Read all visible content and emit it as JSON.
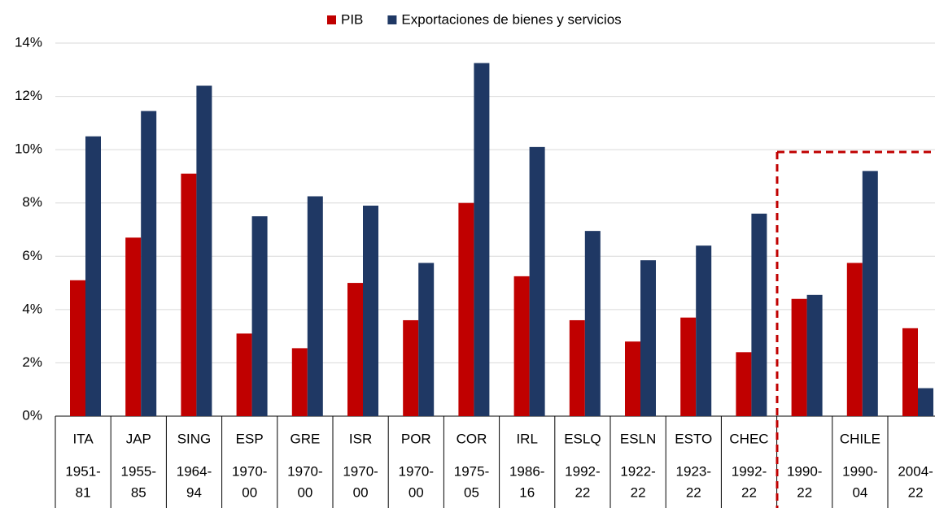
{
  "chart_data": {
    "type": "bar",
    "countries": [
      "ITA",
      "JAP",
      "SING",
      "ESP",
      "GRE",
      "ISR",
      "POR",
      "COR",
      "IRL",
      "ESLQ",
      "ESLN",
      "ESTO",
      "CHEC",
      null,
      "CHILE",
      null
    ],
    "periods": [
      [
        "1951-",
        "81"
      ],
      [
        "1955-",
        "85"
      ],
      [
        "1964-",
        "94"
      ],
      [
        "1970-",
        "00"
      ],
      [
        "1970-",
        "00"
      ],
      [
        "1970-",
        "00"
      ],
      [
        "1970-",
        "00"
      ],
      [
        "1975-",
        "05"
      ],
      [
        "1986-",
        "16"
      ],
      [
        "1992-",
        "22"
      ],
      [
        "1922-",
        "22"
      ],
      [
        "1923-",
        "22"
      ],
      [
        "1992-",
        "22"
      ],
      [
        "1990-",
        "22"
      ],
      [
        "1990-",
        "04"
      ],
      [
        "2004-",
        "22"
      ]
    ],
    "series": [
      {
        "name": "PIB",
        "color": "#c00000",
        "values": [
          5.1,
          6.7,
          9.1,
          3.1,
          2.55,
          5.0,
          3.6,
          8.0,
          5.25,
          3.6,
          2.8,
          3.7,
          2.4,
          4.4,
          5.75,
          3.3
        ]
      },
      {
        "name": "Exportaciones de bienes y servicios",
        "color": "#1f3864",
        "values": [
          10.5,
          11.45,
          12.4,
          7.5,
          8.25,
          7.9,
          5.75,
          13.25,
          10.1,
          6.95,
          5.85,
          6.4,
          7.6,
          4.55,
          9.2,
          1.05
        ]
      }
    ],
    "ylim": [
      0,
      14
    ],
    "yticks": [
      {
        "value": 0,
        "label": "0%"
      },
      {
        "value": 2,
        "label": "2%"
      },
      {
        "value": 4,
        "label": "4%"
      },
      {
        "value": 6,
        "label": "6%"
      },
      {
        "value": 8,
        "label": "8%"
      },
      {
        "value": 10,
        "label": "10%"
      },
      {
        "value": 12,
        "label": "12%"
      },
      {
        "value": 14,
        "label": "14%"
      }
    ],
    "grid": true
  }
}
